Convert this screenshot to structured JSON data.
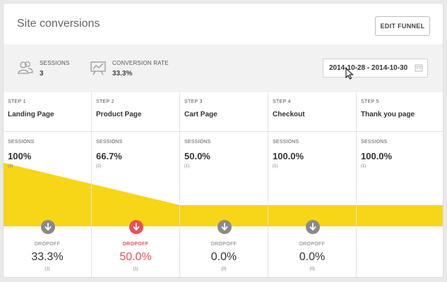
{
  "header": {
    "title": "Site conversions",
    "edit_button": "EDIT FUNNEL"
  },
  "summary": {
    "sessions_label": "SESSIONS",
    "sessions_value": "3",
    "rate_label": "CONVERSION RATE",
    "rate_value": "33.3%",
    "date_range": "2014-10-28 - 2014-10-30"
  },
  "colors": {
    "funnel_fill": "#f7d617",
    "dropoff_icon": "#8a8a8a",
    "dropoff_alert": "#e8505b"
  },
  "steps": [
    {
      "num": "STEP 1",
      "name": "Landing Page",
      "sessions_label": "SESSIONS",
      "pct": "100%",
      "count": "(3)",
      "value": 100,
      "drop_label": "DROPOFF",
      "drop_pct": "33.3%",
      "drop_count": "(1)"
    },
    {
      "num": "STEP 2",
      "name": "Product Page",
      "sessions_label": "SESSIONS",
      "pct": "66.7%",
      "count": "(2)",
      "value": 66.7,
      "drop_label": "DROPOFF",
      "drop_pct": "50.0%",
      "drop_count": "(1)"
    },
    {
      "num": "STEP 3",
      "name": "Cart Page",
      "sessions_label": "SESSIONS",
      "pct": "50.0%",
      "count": "(1)",
      "value": 50.0,
      "drop_label": "DROPOFF",
      "drop_pct": "0.0%",
      "drop_count": "(0)"
    },
    {
      "num": "STEP 4",
      "name": "Checkout",
      "sessions_label": "SESSIONS",
      "pct": "100.0%",
      "count": "(1)",
      "value": 100.0,
      "drop_label": "DROPOFF",
      "drop_pct": "0.0%",
      "drop_count": "(0)"
    },
    {
      "num": "STEP 5",
      "name": "Thank you page",
      "sessions_label": "SESSIONS",
      "pct": "100.0%",
      "count": "(1)",
      "value": 100.0
    }
  ]
}
